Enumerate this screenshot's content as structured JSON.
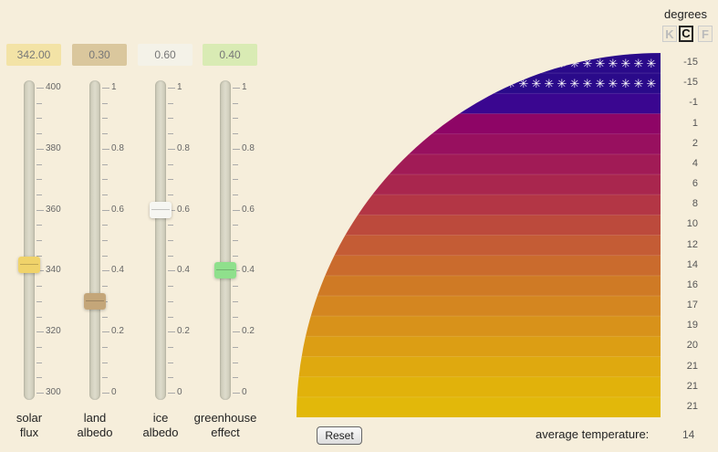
{
  "units": {
    "title": "degrees",
    "options": [
      {
        "label": "K",
        "active": false
      },
      {
        "label": "C",
        "active": true
      },
      {
        "label": "F",
        "active": false
      }
    ]
  },
  "sliders": [
    {
      "name": "solar-flux",
      "label_line1": "solar",
      "label_line2": "flux",
      "value_text": "342.00",
      "value": 342,
      "min": 300,
      "max": 400,
      "ticks": [
        "400",
        "380",
        "360",
        "340",
        "320",
        "300"
      ],
      "box_color": "#f3e3a6",
      "thumb_color": "#f0d36a"
    },
    {
      "name": "land-albedo",
      "label_line1": "land",
      "label_line2": "albedo",
      "value_text": "0.30",
      "value": 0.3,
      "min": 0,
      "max": 1,
      "ticks": [
        "1",
        "0.8",
        "0.6",
        "0.4",
        "0.2",
        "0"
      ],
      "box_color": "#dac79d",
      "thumb_color": "#c4a679"
    },
    {
      "name": "ice-albedo",
      "label_line1": "ice",
      "label_line2": "albedo",
      "value_text": "0.60",
      "value": 0.6,
      "min": 0,
      "max": 1,
      "ticks": [
        "1",
        "0.8",
        "0.6",
        "0.4",
        "0.2",
        "0"
      ],
      "box_color": "#f4f2e8",
      "thumb_color": "#f6f6f2"
    },
    {
      "name": "greenhouse-effect",
      "label_line1": "greenhouse",
      "label_line2": "effect",
      "value_text": "0.40",
      "value": 0.4,
      "min": 0,
      "max": 1,
      "ticks": [
        "1",
        "0.8",
        "0.6",
        "0.4",
        "0.2",
        "0"
      ],
      "box_color": "#d9ebb4",
      "thumb_color": "#8fe08c"
    }
  ],
  "bands": [
    {
      "temp": "-15",
      "color": "#2a0a8a",
      "ice": true
    },
    {
      "temp": "-15",
      "color": "#2a0a8a",
      "ice": true
    },
    {
      "temp": "-1",
      "color": "#3a0690",
      "ice": false
    },
    {
      "temp": "1",
      "color": "#8e0566",
      "ice": false
    },
    {
      "temp": "2",
      "color": "#98105f",
      "ice": false
    },
    {
      "temp": "4",
      "color": "#a11b56",
      "ice": false
    },
    {
      "temp": "6",
      "color": "#a9264e",
      "ice": false
    },
    {
      "temp": "8",
      "color": "#b33645",
      "ice": false
    },
    {
      "temp": "10",
      "color": "#bc4a3c",
      "ice": false
    },
    {
      "temp": "12",
      "color": "#c45c35",
      "ice": false
    },
    {
      "temp": "14",
      "color": "#ca6b2d",
      "ice": false
    },
    {
      "temp": "16",
      "color": "#cf7a25",
      "ice": false
    },
    {
      "temp": "17",
      "color": "#d48620",
      "ice": false
    },
    {
      "temp": "19",
      "color": "#d8921a",
      "ice": false
    },
    {
      "temp": "20",
      "color": "#dc9e14",
      "ice": false
    },
    {
      "temp": "21",
      "color": "#dfa90f",
      "ice": false
    },
    {
      "temp": "21",
      "color": "#e1b20b",
      "ice": false
    },
    {
      "temp": "21",
      "color": "#e2b80a",
      "ice": false
    }
  ],
  "reset_label": "Reset",
  "average": {
    "label": "average temperature:",
    "value": "14"
  }
}
